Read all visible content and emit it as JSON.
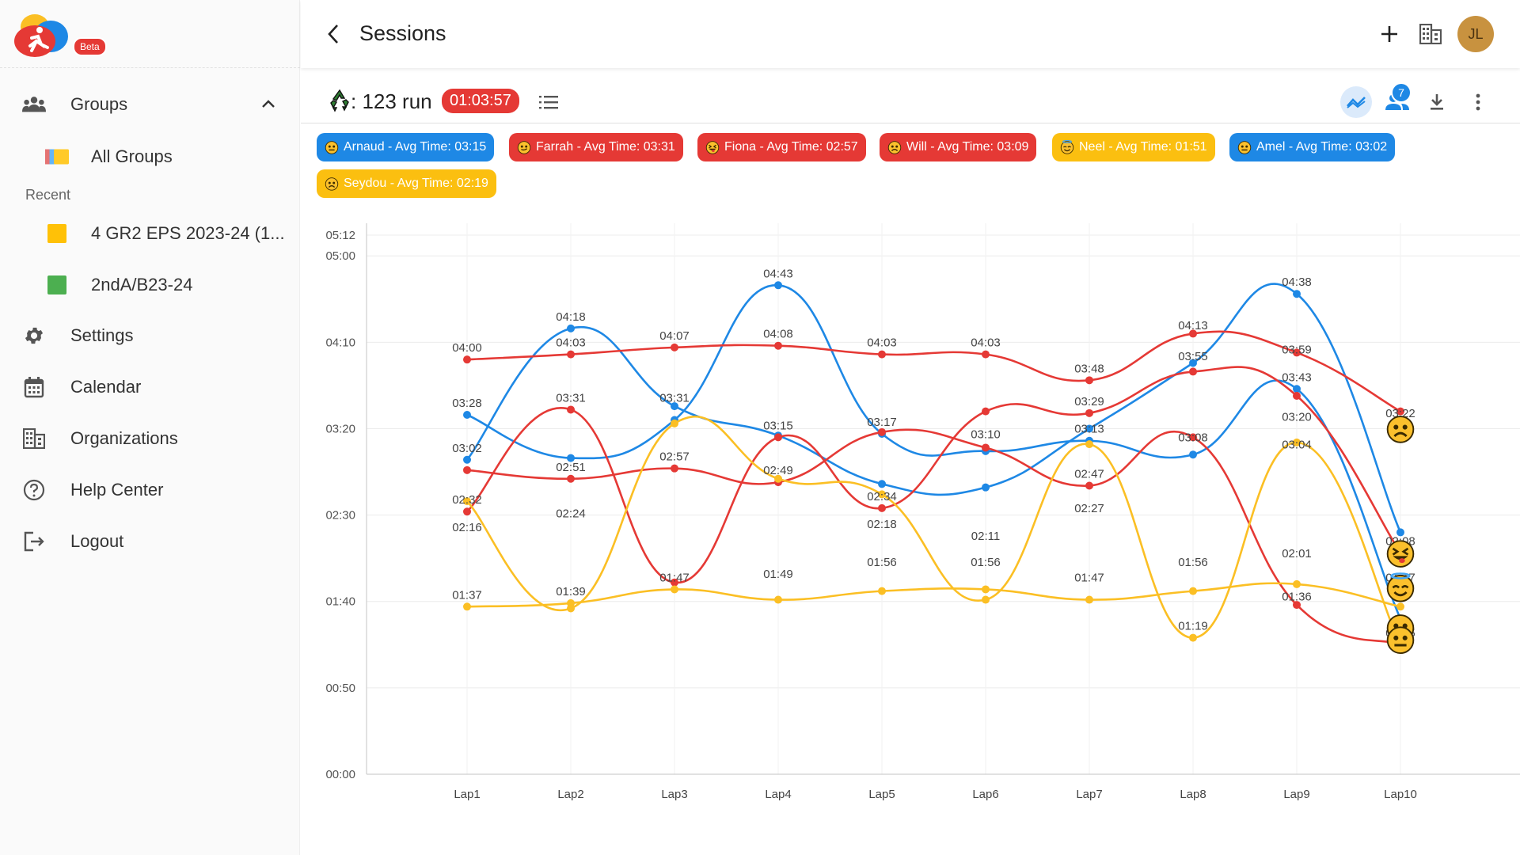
{
  "app": {
    "beta_label": "Beta"
  },
  "sidebar": {
    "groups_label": "Groups",
    "all_groups_label": "All Groups",
    "recent_label": "Recent",
    "recent_items": [
      {
        "label": "4 GR2 EPS 2023-24 (1...",
        "color": "#ffc107"
      },
      {
        "label": "2ndA/B23-24",
        "color": "#4caf50"
      }
    ],
    "settings_label": "Settings",
    "calendar_label": "Calendar",
    "organizations_label": "Organizations",
    "help_label": "Help Center",
    "logout_label": "Logout"
  },
  "header": {
    "title": "Sessions",
    "avatar_initials": "JL"
  },
  "session": {
    "name": ": 123 run",
    "total_time": "01:03:57",
    "members_count": "7"
  },
  "chips": [
    {
      "label": "Arnaud - Avg Time: 03:15",
      "color": "blue",
      "face": "neutral"
    },
    {
      "label": "Farrah - Avg Time: 03:31",
      "color": "red",
      "face": "smirk"
    },
    {
      "label": "Fiona - Avg Time: 02:57",
      "color": "red",
      "face": "tongue"
    },
    {
      "label": "Will - Avg Time: 03:09",
      "color": "red",
      "face": "sad"
    },
    {
      "label": "Neel - Avg Time: 01:51",
      "color": "yellow",
      "face": "halo"
    },
    {
      "label": "Amel - Avg Time: 03:02",
      "color": "blue",
      "face": "neutral"
    },
    {
      "label": "Seydou - Avg Time: 02:19",
      "color": "yellow",
      "face": "sad"
    }
  ],
  "chart_data": {
    "type": "line",
    "categories": [
      "Lap1",
      "Lap2",
      "Lap3",
      "Lap4",
      "Lap5",
      "Lap6",
      "Lap7",
      "Lap8",
      "Lap9",
      "Lap10"
    ],
    "y_ticks": [
      "00:00",
      "00:50",
      "01:40",
      "02:30",
      "03:20",
      "04:10",
      "05:00",
      "05:12"
    ],
    "ylim": [
      0,
      312
    ],
    "grid": true,
    "colors": {
      "blue": "#1e88e5",
      "red": "#e53935",
      "yellow": "#fbbf24"
    },
    "series": [
      {
        "color": "blue",
        "values": [
          182,
          258,
          213,
          196,
          168,
          166,
          200,
          238,
          278,
          140
        ]
      },
      {
        "color": "blue",
        "values": [
          208,
          183,
          205,
          283,
          197,
          187,
          193,
          185,
          223,
          90
        ]
      },
      {
        "color": "red",
        "values": [
          240,
          243,
          247,
          248,
          243,
          243,
          228,
          255,
          244,
          210
        ]
      },
      {
        "color": "red",
        "values": [
          152,
          211,
          111,
          195,
          154,
          210,
          209,
          233,
          219,
          128
        ]
      },
      {
        "color": "red",
        "values": [
          176,
          171,
          177,
          169,
          198,
          189,
          167,
          195,
          98,
          75
        ]
      },
      {
        "color": "yellow",
        "values": [
          97,
          99,
          107,
          101,
          106,
          107,
          101,
          106,
          110,
          97
        ]
      },
      {
        "color": "yellow",
        "values": [
          158,
          96,
          203,
          171,
          162,
          101,
          191,
          79,
          192,
          75
        ]
      }
    ],
    "point_labels": [
      {
        "lap": 1,
        "v": 240,
        "text": "04:00"
      },
      {
        "lap": 1,
        "v": 208,
        "text": "03:28"
      },
      {
        "lap": 1,
        "v": 182,
        "text": "03:02"
      },
      {
        "lap": 1,
        "v": 152,
        "text": "02:32"
      },
      {
        "lap": 1,
        "v": 136,
        "text": "02:16"
      },
      {
        "lap": 1,
        "v": 97,
        "text": "01:37"
      },
      {
        "lap": 2,
        "v": 258,
        "text": "04:18"
      },
      {
        "lap": 2,
        "v": 243,
        "text": "04:03"
      },
      {
        "lap": 2,
        "v": 211,
        "text": "03:31"
      },
      {
        "lap": 2,
        "v": 171,
        "text": "02:51"
      },
      {
        "lap": 2,
        "v": 144,
        "text": "02:24"
      },
      {
        "lap": 2,
        "v": 99,
        "text": "01:39"
      },
      {
        "lap": 3,
        "v": 247,
        "text": "04:07"
      },
      {
        "lap": 3,
        "v": 211,
        "text": "03:31"
      },
      {
        "lap": 3,
        "v": 177,
        "text": "02:57"
      },
      {
        "lap": 3,
        "v": 107,
        "text": "01:47"
      },
      {
        "lap": 4,
        "v": 283,
        "text": "04:43"
      },
      {
        "lap": 4,
        "v": 248,
        "text": "04:08"
      },
      {
        "lap": 4,
        "v": 195,
        "text": "03:15"
      },
      {
        "lap": 4,
        "v": 169,
        "text": "02:49"
      },
      {
        "lap": 4,
        "v": 109,
        "text": "01:49"
      },
      {
        "lap": 5,
        "v": 243,
        "text": "04:03"
      },
      {
        "lap": 5,
        "v": 197,
        "text": "03:17"
      },
      {
        "lap": 5,
        "v": 154,
        "text": "02:34"
      },
      {
        "lap": 5,
        "v": 138,
        "text": "02:18"
      },
      {
        "lap": 5,
        "v": 116,
        "text": "01:56"
      },
      {
        "lap": 6,
        "v": 243,
        "text": "04:03"
      },
      {
        "lap": 6,
        "v": 190,
        "text": "03:10"
      },
      {
        "lap": 6,
        "v": 131,
        "text": "02:11"
      },
      {
        "lap": 6,
        "v": 116,
        "text": "01:56"
      },
      {
        "lap": 7,
        "v": 228,
        "text": "03:48"
      },
      {
        "lap": 7,
        "v": 209,
        "text": "03:29"
      },
      {
        "lap": 7,
        "v": 193,
        "text": "03:13"
      },
      {
        "lap": 7,
        "v": 167,
        "text": "02:47"
      },
      {
        "lap": 7,
        "v": 147,
        "text": "02:27"
      },
      {
        "lap": 7,
        "v": 107,
        "text": "01:47"
      },
      {
        "lap": 8,
        "v": 253,
        "text": "04:13"
      },
      {
        "lap": 8,
        "v": 235,
        "text": "03:55"
      },
      {
        "lap": 8,
        "v": 188,
        "text": "03:08"
      },
      {
        "lap": 8,
        "v": 116,
        "text": "01:56"
      },
      {
        "lap": 8,
        "v": 79,
        "text": "01:19"
      },
      {
        "lap": 9,
        "v": 278,
        "text": "04:38"
      },
      {
        "lap": 9,
        "v": 239,
        "text": "03:59"
      },
      {
        "lap": 9,
        "v": 223,
        "text": "03:43"
      },
      {
        "lap": 9,
        "v": 200,
        "text": "03:20"
      },
      {
        "lap": 9,
        "v": 184,
        "text": "03:04"
      },
      {
        "lap": 9,
        "v": 121,
        "text": "02:01"
      },
      {
        "lap": 9,
        "v": 96,
        "text": "01:36"
      },
      {
        "lap": 10,
        "v": 202,
        "text": "03:22"
      },
      {
        "lap": 10,
        "v": 128,
        "text": "02:08"
      },
      {
        "lap": 10,
        "v": 107,
        "text": "01:47"
      },
      {
        "lap": 10,
        "v": 75,
        "text": "01:15"
      }
    ],
    "end_faces": [
      {
        "v": 200,
        "face": "sad"
      },
      {
        "v": 128,
        "face": "tongue"
      },
      {
        "v": 108,
        "face": "halo"
      },
      {
        "v": 85,
        "face": "neutral"
      },
      {
        "v": 78,
        "face": "neutral"
      }
    ]
  }
}
